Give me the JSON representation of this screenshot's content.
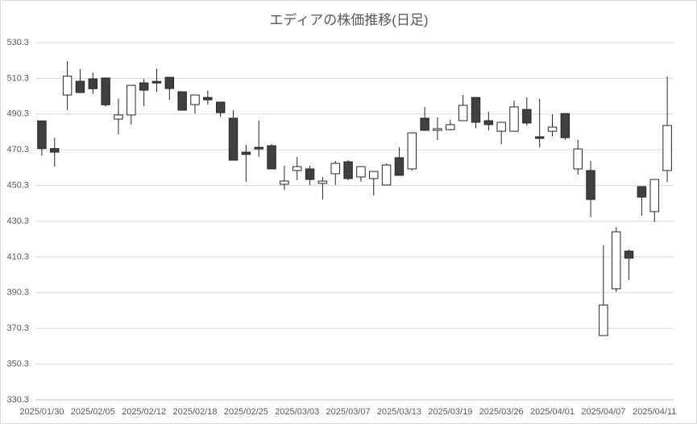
{
  "chart_data": {
    "type": "candlestick",
    "title": "エディアの株価推移(日足)",
    "categories": [
      "2025/01/30",
      null,
      null,
      null,
      "2025/02/05",
      null,
      null,
      null,
      "2025/02/12",
      null,
      null,
      null,
      "2025/02/18",
      null,
      null,
      null,
      "2025/02/25",
      null,
      null,
      null,
      "2025/03/03",
      null,
      null,
      null,
      "2025/03/07",
      null,
      null,
      null,
      "2025/03/13",
      null,
      null,
      null,
      "2025/03/19",
      null,
      null,
      null,
      "2025/03/26",
      null,
      null,
      null,
      "2025/04/01",
      null,
      null,
      null,
      "2025/04/07",
      null,
      null,
      null,
      "2025/04/11",
      null
    ],
    "open": [
      486.5,
      471,
      501,
      508.7,
      510,
      510.5,
      487.5,
      489.8,
      507.8,
      508.6,
      510.9,
      502.8,
      495.6,
      499.6,
      497,
      488,
      469,
      471.7,
      472.6,
      451,
      458.7,
      459.6,
      451.5,
      456.9,
      463.6,
      455.1,
      454.2,
      450.6,
      465.9,
      459.6,
      488,
      481.2,
      481.6,
      486.6,
      499.6,
      486.6,
      480.7,
      480.7,
      492.9,
      477.6,
      480.7,
      490.6,
      459.6,
      458.7,
      366.3,
      392.5,
      413.6,
      449.7,
      435.7,
      458.7
    ],
    "high": [
      486.5,
      477,
      520,
      515.5,
      513.5,
      510.5,
      499,
      506.5,
      510,
      515.8,
      510.9,
      502.8,
      501,
      503.3,
      497,
      492.5,
      473.1,
      486.6,
      473.5,
      461.4,
      466.3,
      461.4,
      455,
      464.1,
      464.5,
      460.9,
      458.2,
      462.7,
      471.7,
      479.8,
      494.3,
      488.4,
      487,
      501,
      499.6,
      491.6,
      485.7,
      497.9,
      499.6,
      498.8,
      490.2,
      490.6,
      475.8,
      464.1,
      416.8,
      427.1,
      414.5,
      449.7,
      453.7,
      511.4
    ],
    "low": [
      467,
      461,
      492.5,
      502,
      501.5,
      494.5,
      479,
      484.4,
      494.8,
      502.8,
      498.3,
      492.5,
      490.6,
      495.6,
      488.8,
      464.5,
      452.4,
      466.3,
      459.6,
      447.9,
      453.3,
      450.6,
      442.5,
      450.6,
      453.3,
      452.4,
      444.7,
      450.6,
      456,
      458.7,
      481.2,
      475.8,
      481.2,
      486.6,
      482.5,
      481.2,
      473.5,
      480.7,
      483.9,
      471.7,
      478,
      475.8,
      456.4,
      432.6,
      366.3,
      390.7,
      397.4,
      433.5,
      429.9,
      452.4
    ],
    "close": [
      471,
      469,
      511.5,
      502.4,
      504.5,
      495.5,
      489.8,
      506.4,
      503.7,
      507.7,
      504.6,
      492.5,
      501,
      498.3,
      491.1,
      464.5,
      467.7,
      470.8,
      459.6,
      452.8,
      460.9,
      453.7,
      452.8,
      462.7,
      454.2,
      460.9,
      458.2,
      461.8,
      456,
      479.8,
      481.2,
      482.1,
      484.4,
      495.2,
      485.7,
      484.4,
      485.7,
      494.3,
      485.3,
      476.7,
      483,
      477.1,
      470.8,
      442.5,
      383.4,
      424.4,
      409.6,
      443.8,
      453.7,
      483.9
    ],
    "up_color": "#ffffff",
    "down_color": "#404040",
    "line_color": "#262626",
    "ylim": [
      330.3,
      530.3
    ],
    "yticks": [
      330.3,
      350.3,
      370.3,
      390.3,
      410.3,
      430.3,
      450.3,
      470.3,
      490.3,
      510.3,
      530.3
    ],
    "grid": true
  }
}
